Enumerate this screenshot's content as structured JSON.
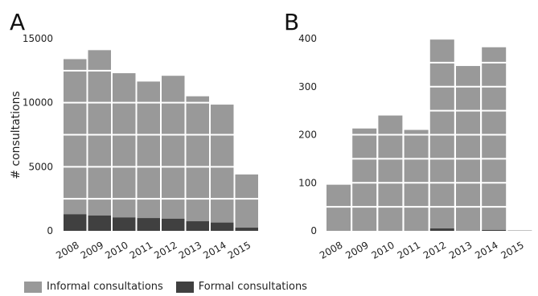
{
  "colors": {
    "informal": "#999999",
    "formal": "#404040",
    "gridline": "#ffffff"
  },
  "legend": [
    {
      "label": "Informal consultations",
      "color": "#999999"
    },
    {
      "label": "Formal consultations",
      "color": "#404040"
    }
  ],
  "chart_data": [
    {
      "panel": "A",
      "type": "bar",
      "stacked": true,
      "categories": [
        "2008",
        "2009",
        "2010",
        "2011",
        "2012",
        "2013",
        "2014",
        "2015"
      ],
      "series": [
        {
          "name": "Formal consultations",
          "values": [
            1300,
            1200,
            1050,
            1000,
            950,
            750,
            650,
            250
          ]
        },
        {
          "name": "Informal consultations",
          "values": [
            12100,
            12900,
            11250,
            10650,
            11150,
            9750,
            9200,
            4150
          ]
        }
      ],
      "ylabel": "# consultations",
      "yticks": [
        0,
        5000,
        10000,
        15000
      ],
      "ylim": [
        0,
        15000
      ],
      "grid": true
    },
    {
      "panel": "B",
      "type": "bar",
      "stacked": true,
      "categories": [
        "2008",
        "2009",
        "2010",
        "2011",
        "2012",
        "2013",
        "2014",
        "2015"
      ],
      "series": [
        {
          "name": "Formal consultations",
          "values": [
            0,
            0,
            0,
            0,
            5,
            0,
            2,
            0
          ]
        },
        {
          "name": "Informal consultations",
          "values": [
            96,
            213,
            240,
            210,
            393,
            343,
            380,
            1
          ]
        }
      ],
      "ylabel": "",
      "yticks": [
        0,
        100,
        200,
        300,
        400
      ],
      "ylim": [
        0,
        400
      ],
      "grid": true
    }
  ]
}
